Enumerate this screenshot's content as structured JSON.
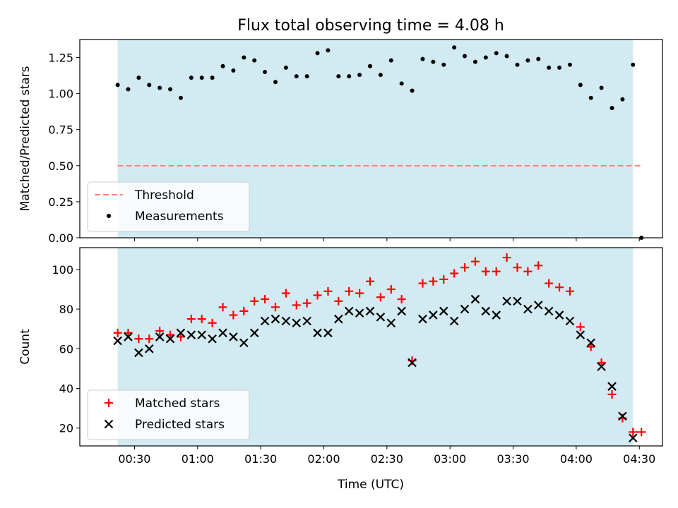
{
  "figure": {
    "title": "Flux total observing time = 4.08 h",
    "xlabel": "Time (UTC)",
    "x_tick_labels": [
      "00:30",
      "01:00",
      "01:30",
      "02:00",
      "02:30",
      "03:00",
      "03:30",
      "04:00",
      "04:30"
    ]
  },
  "colors": {
    "shade": "#add8e6",
    "threshold": "#ff8080",
    "measurement": "#000000",
    "matched": "#ff0000",
    "predicted": "#000000"
  },
  "chart_data": [
    {
      "type": "scatter",
      "ylabel": "Matched/Predicted stars",
      "ylim": [
        0.0,
        1.375
      ],
      "yticks": [
        0.0,
        0.25,
        0.5,
        0.75,
        1.0,
        1.25
      ],
      "ytick_labels": [
        "0.00",
        "0.25",
        "0.50",
        "0.75",
        "1.00",
        "1.25"
      ],
      "shaded_span": [
        "00:22",
        "04:27"
      ],
      "legend_position": "lower-left",
      "threshold": {
        "name": "Threshold",
        "value": 0.5,
        "x_range": [
          "00:22",
          "04:31"
        ],
        "style": "dashed"
      },
      "series": [
        {
          "name": "Measurements",
          "x": [
            "00:22",
            "00:27",
            "00:32",
            "00:37",
            "00:42",
            "00:47",
            "00:52",
            "00:57",
            "01:02",
            "01:07",
            "01:12",
            "01:17",
            "01:22",
            "01:27",
            "01:32",
            "01:37",
            "01:42",
            "01:47",
            "01:52",
            "01:57",
            "02:02",
            "02:07",
            "02:12",
            "02:17",
            "02:22",
            "02:27",
            "02:32",
            "02:37",
            "02:42",
            "02:47",
            "02:52",
            "02:57",
            "03:02",
            "03:07",
            "03:12",
            "03:17",
            "03:22",
            "03:27",
            "03:32",
            "03:37",
            "03:42",
            "03:47",
            "03:52",
            "03:57",
            "04:02",
            "04:07",
            "04:12",
            "04:17",
            "04:22",
            "04:27",
            "04:31"
          ],
          "values": [
            1.06,
            1.03,
            1.11,
            1.06,
            1.04,
            1.03,
            0.97,
            1.11,
            1.11,
            1.11,
            1.19,
            1.16,
            1.25,
            1.23,
            1.15,
            1.08,
            1.18,
            1.12,
            1.12,
            1.28,
            1.3,
            1.12,
            1.12,
            1.13,
            1.19,
            1.13,
            1.23,
            1.07,
            1.02,
            1.24,
            1.22,
            1.2,
            1.32,
            1.26,
            1.22,
            1.25,
            1.28,
            1.26,
            1.2,
            1.23,
            1.24,
            1.18,
            1.18,
            1.2,
            1.06,
            0.97,
            1.04,
            0.9,
            0.96,
            1.2,
            0.0
          ]
        }
      ]
    },
    {
      "type": "scatter",
      "ylabel": "Count",
      "ylim": [
        11,
        111
      ],
      "yticks": [
        20,
        40,
        60,
        80,
        100
      ],
      "ytick_labels": [
        "20",
        "40",
        "60",
        "80",
        "100"
      ],
      "shaded_span": [
        "00:22",
        "04:27"
      ],
      "legend_position": "lower-left",
      "series": [
        {
          "name": "Matched stars",
          "marker": "plus",
          "x": [
            "00:22",
            "00:27",
            "00:32",
            "00:37",
            "00:42",
            "00:47",
            "00:52",
            "00:57",
            "01:02",
            "01:07",
            "01:12",
            "01:17",
            "01:22",
            "01:27",
            "01:32",
            "01:37",
            "01:42",
            "01:47",
            "01:52",
            "01:57",
            "02:02",
            "02:07",
            "02:12",
            "02:17",
            "02:22",
            "02:27",
            "02:32",
            "02:37",
            "02:42",
            "02:47",
            "02:52",
            "02:57",
            "03:02",
            "03:07",
            "03:12",
            "03:17",
            "03:22",
            "03:27",
            "03:32",
            "03:37",
            "03:42",
            "03:47",
            "03:52",
            "03:57",
            "04:02",
            "04:07",
            "04:12",
            "04:17",
            "04:22",
            "04:27",
            "04:31"
          ],
          "values": [
            68,
            68,
            65,
            65,
            69,
            67,
            66,
            75,
            75,
            73,
            81,
            77,
            79,
            84,
            85,
            81,
            88,
            82,
            83,
            87,
            89,
            84,
            89,
            88,
            94,
            86,
            90,
            85,
            54,
            93,
            94,
            95,
            98,
            101,
            104,
            99,
            99,
            106,
            101,
            99,
            102,
            93,
            91,
            89,
            71,
            61,
            53,
            37,
            25,
            18,
            18
          ]
        },
        {
          "name": "Predicted stars",
          "marker": "x",
          "x": [
            "00:22",
            "00:27",
            "00:32",
            "00:37",
            "00:42",
            "00:47",
            "00:52",
            "00:57",
            "01:02",
            "01:07",
            "01:12",
            "01:17",
            "01:22",
            "01:27",
            "01:32",
            "01:37",
            "01:42",
            "01:47",
            "01:52",
            "01:57",
            "02:02",
            "02:07",
            "02:12",
            "02:17",
            "02:22",
            "02:27",
            "02:32",
            "02:37",
            "02:42",
            "02:47",
            "02:52",
            "02:57",
            "03:02",
            "03:07",
            "03:12",
            "03:17",
            "03:22",
            "03:27",
            "03:32",
            "03:37",
            "03:42",
            "03:47",
            "03:52",
            "03:57",
            "04:02",
            "04:07",
            "04:12",
            "04:17",
            "04:22",
            "04:27"
          ],
          "values": [
            64,
            66,
            58,
            60,
            66,
            65,
            68,
            67,
            67,
            65,
            68,
            66,
            63,
            68,
            74,
            75,
            74,
            73,
            74,
            68,
            68,
            75,
            79,
            78,
            79,
            76,
            73,
            79,
            53,
            75,
            77,
            79,
            74,
            80,
            85,
            79,
            77,
            84,
            84,
            80,
            82,
            79,
            77,
            74,
            67,
            63,
            51,
            41,
            26,
            15
          ]
        }
      ]
    }
  ]
}
